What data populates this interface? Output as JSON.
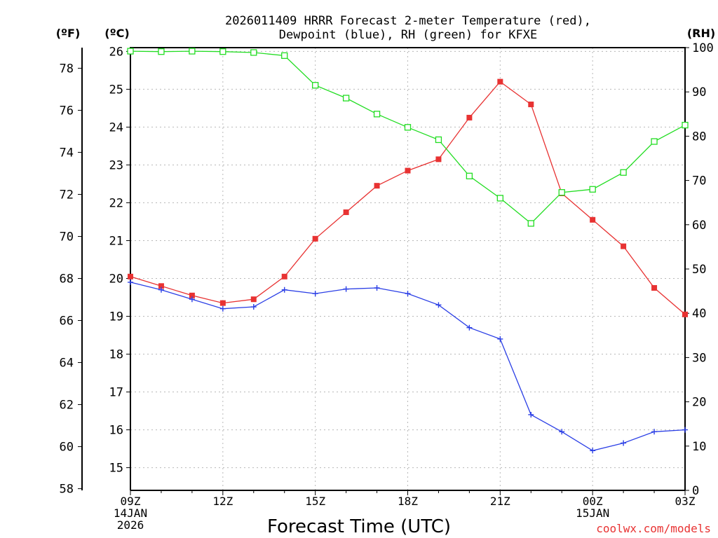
{
  "chart_data": {
    "type": "line",
    "title_lines": [
      "2026011409 HRRR Forecast 2-meter Temperature (red),",
      "Dewpoint (blue), RH (green) for KFXE"
    ],
    "xlabel": "Forecast Time (UTC)",
    "credit": "coolwx.com/models",
    "units": {
      "fahrenheit": "(ºF)",
      "celsius": "(ºC)",
      "rh": "(RH)"
    },
    "x_hours": [
      0,
      1,
      2,
      3,
      4,
      5,
      6,
      7,
      8,
      9,
      10,
      11,
      12,
      13,
      14,
      15,
      16,
      17,
      18
    ],
    "x_ticks": [
      {
        "hour": 0,
        "lines": [
          "09Z",
          "14JAN",
          "2026"
        ]
      },
      {
        "hour": 3,
        "lines": [
          "12Z"
        ]
      },
      {
        "hour": 6,
        "lines": [
          "15Z"
        ]
      },
      {
        "hour": 9,
        "lines": [
          "18Z"
        ]
      },
      {
        "hour": 12,
        "lines": [
          "21Z"
        ]
      },
      {
        "hour": 15,
        "lines": [
          "00Z",
          "15JAN"
        ]
      },
      {
        "hour": 18,
        "lines": [
          "03Z"
        ]
      }
    ],
    "celsius_axis": {
      "ylim": [
        14.4,
        26.1
      ],
      "ticks": [
        15,
        16,
        17,
        18,
        19,
        20,
        21,
        22,
        23,
        24,
        25,
        26
      ]
    },
    "fahrenheit_axis": {
      "ylim": [
        57.92,
        78.98
      ],
      "ticks": [
        58,
        60,
        62,
        64,
        66,
        68,
        70,
        72,
        74,
        76,
        78
      ]
    },
    "rh_axis": {
      "ylim": [
        0,
        100
      ],
      "ticks": [
        0,
        10,
        20,
        30,
        40,
        50,
        60,
        70,
        80,
        90,
        100
      ]
    },
    "series": [
      {
        "name": "Temperature",
        "axis": "celsius",
        "color": "#e83232",
        "marker": "filled-square",
        "values": [
          20.05,
          19.8,
          19.55,
          19.35,
          19.45,
          20.05,
          21.05,
          21.75,
          22.45,
          22.85,
          23.15,
          24.25,
          25.2,
          24.6,
          22.25,
          21.55,
          20.85,
          19.75,
          19.05
        ]
      },
      {
        "name": "Dewpoint",
        "axis": "celsius",
        "color": "#2b3fe6",
        "marker": "plus",
        "values": [
          19.9,
          19.7,
          19.45,
          19.2,
          19.25,
          19.7,
          19.6,
          19.72,
          19.75,
          19.6,
          19.3,
          18.7,
          18.4,
          16.4,
          15.95,
          15.45,
          15.65,
          15.95,
          16.0
        ]
      },
      {
        "name": "RH",
        "axis": "rh",
        "color": "#22dd22",
        "marker": "open-square",
        "values": [
          99.2,
          99.1,
          99.2,
          99.1,
          98.9,
          98.2,
          91.5,
          88.6,
          85.0,
          82.0,
          79.2,
          71.0,
          66.0,
          60.3,
          67.3,
          68.0,
          71.8,
          78.8,
          82.5
        ]
      }
    ]
  }
}
